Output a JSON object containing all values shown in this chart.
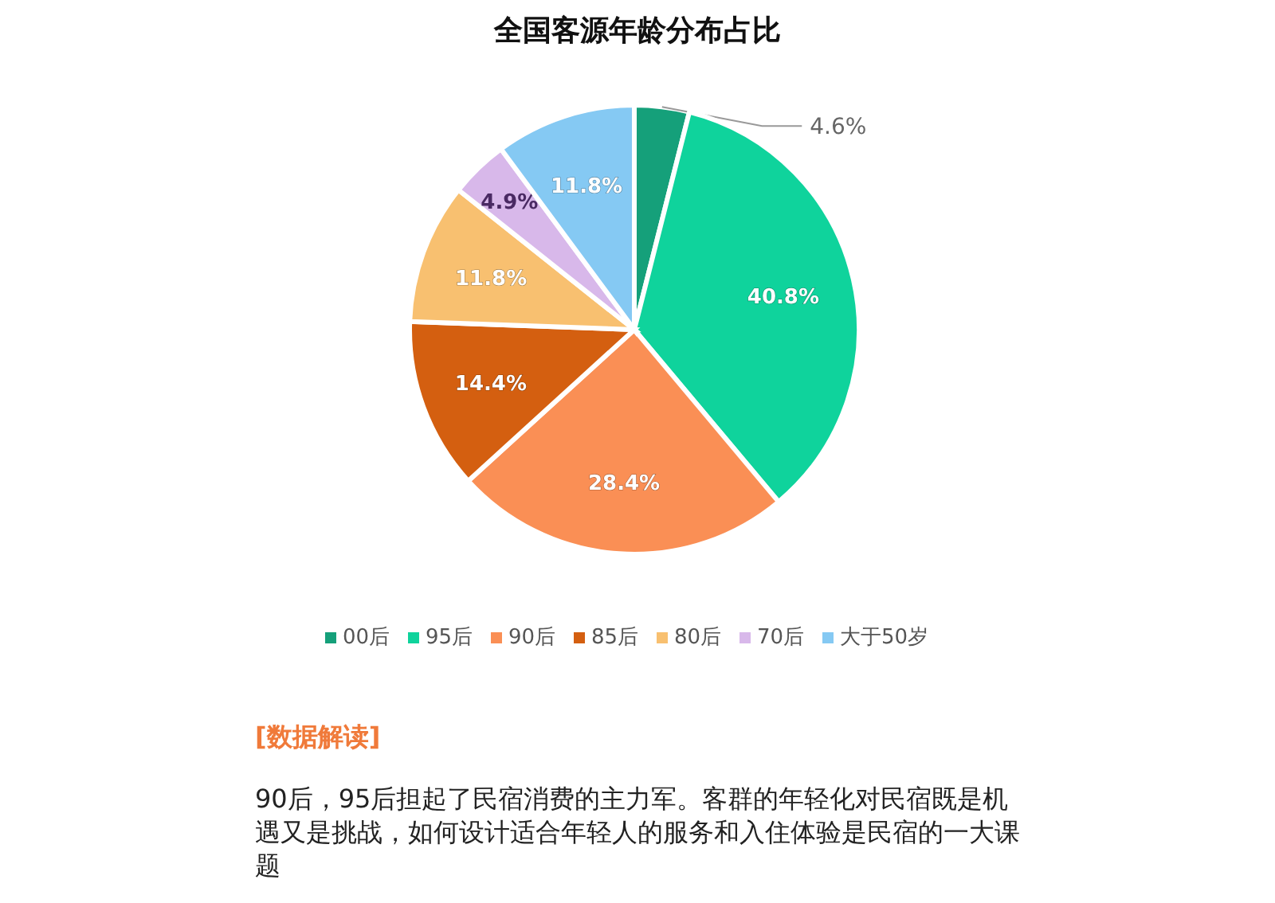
{
  "chart_data": {
    "type": "pie",
    "title": "全国客源年龄分布占比",
    "categories": [
      "00后",
      "95后",
      "90后",
      "85后",
      "80后",
      "70后",
      "大于50岁"
    ],
    "values": [
      4.6,
      40.8,
      28.4,
      14.4,
      11.8,
      4.9,
      11.8
    ],
    "colors": [
      "#15a07a",
      "#0fd39c",
      "#fa8f55",
      "#d45f10",
      "#f8c070",
      "#d8b8ea",
      "#85c9f3"
    ],
    "value_labels": [
      "4.6%",
      "40.8%",
      "28.4%",
      "14.4%",
      "11.8%",
      "4.9%",
      "11.8%"
    ],
    "legend": "bottom",
    "annotations": [
      "[数据解读]",
      "90后，95后担起了民宿消费的主力军。客群的年轻化对民宿既是机遇又是挑战，如何设计适合年轻人的服务和入住体验是民宿的一大课题"
    ]
  }
}
